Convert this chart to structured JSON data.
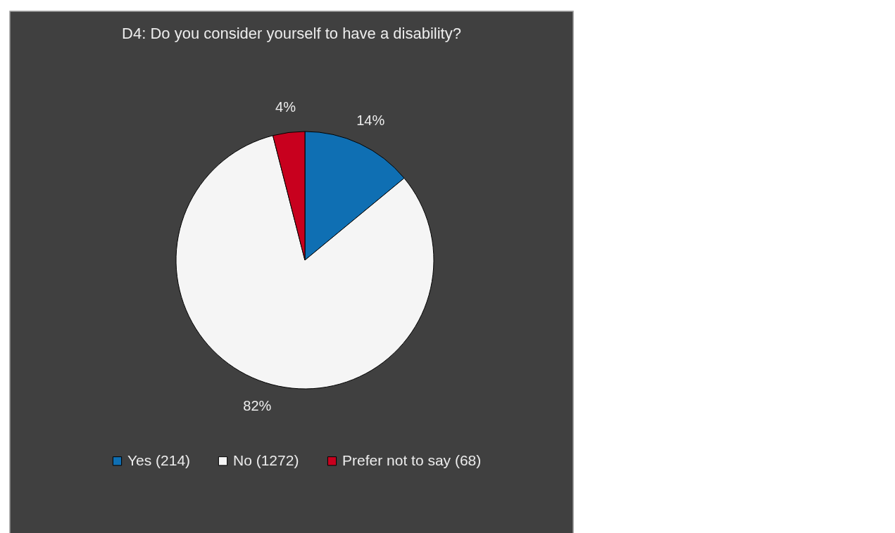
{
  "chart_data": {
    "type": "pie",
    "title": "D4: Do you consider yourself to have a disability?",
    "categories": [
      "Yes  (214)",
      "No  (1272)",
      "Prefer not to say (68)"
    ],
    "values": [
      14,
      82,
      4
    ],
    "value_labels": [
      "14%",
      "82%",
      "4%"
    ],
    "colors": [
      "#0f6fb3",
      "#f5f5f5",
      "#c8001e"
    ],
    "legend": "bottom"
  }
}
